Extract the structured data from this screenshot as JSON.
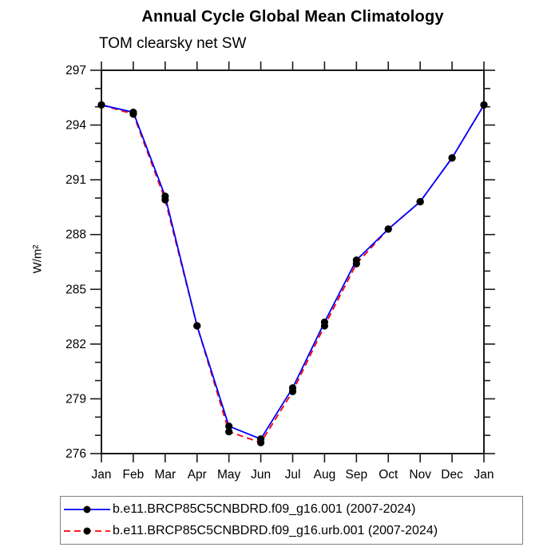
{
  "chart_data": {
    "type": "line",
    "title": "Annual Cycle Global Mean Climatology",
    "subtitle": "TOM clearsky net SW",
    "ylabel": "W/m²",
    "xlabel": "",
    "x_categories": [
      "Jan",
      "Feb",
      "Mar",
      "Apr",
      "May",
      "Jun",
      "Jul",
      "Aug",
      "Sep",
      "Oct",
      "Nov",
      "Dec",
      "Jan"
    ],
    "ylim": [
      276,
      297
    ],
    "ytick_major": [
      276,
      279,
      282,
      285,
      288,
      291,
      294,
      297
    ],
    "ytick_minor_step": 1,
    "grid": false,
    "legend_position": "bottom",
    "axis_color": "#1a1a1a",
    "text_color": "#000000",
    "marker_color": "#000000",
    "series": [
      {
        "label": "b.e11.BRCP85C5CNBDRD.f09_g16.001 (2007-2024)",
        "color": "#0000ff",
        "line_style": "solid",
        "dash": "",
        "marker": "filled-circle",
        "values": [
          295.1,
          294.7,
          290.1,
          283.0,
          277.5,
          276.8,
          279.6,
          283.2,
          286.6,
          288.3,
          289.8,
          292.2,
          295.1
        ]
      },
      {
        "label": "b.e11.BRCP85C5CNBDRD.f09_g16.urb.001 (2007-2024)",
        "color": "#ff0000",
        "line_style": "dashed",
        "dash": "8,5",
        "marker": "filled-circle",
        "values": [
          295.1,
          294.6,
          289.9,
          283.0,
          277.2,
          276.6,
          279.4,
          283.0,
          286.4,
          288.3,
          289.8,
          292.2,
          295.1
        ]
      }
    ]
  }
}
